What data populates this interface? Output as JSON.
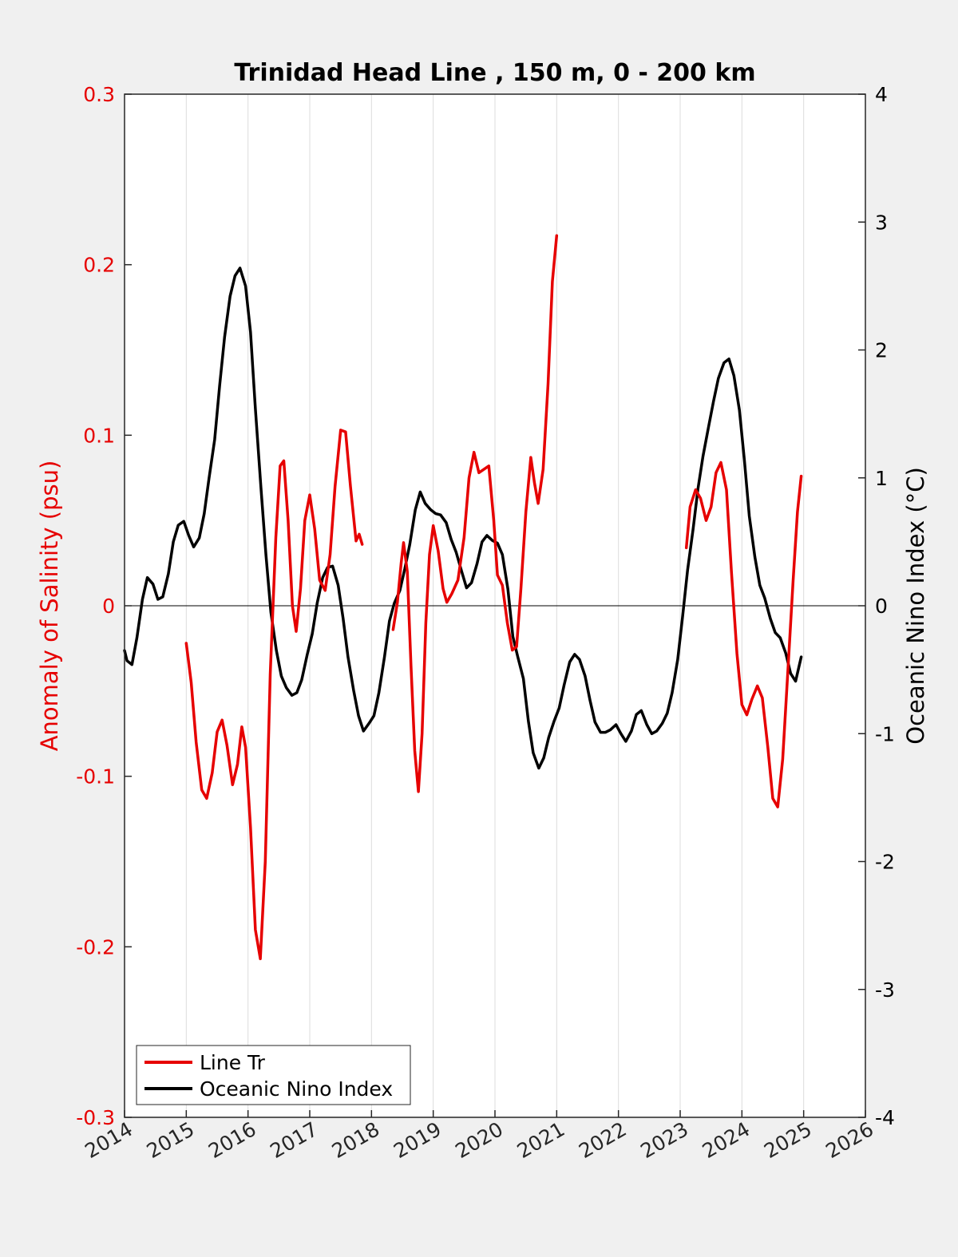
{
  "chart_data": {
    "type": "line",
    "title": "Trinidad Head Line , 150 m, 0 - 200 km",
    "x_label": "",
    "y_left_label": "Anomaly of Salinity (psu)",
    "y_right_label": "Oceanic Nino Index (°C)",
    "x_range": [
      2014,
      2026
    ],
    "y_left_range": [
      -0.3,
      0.3
    ],
    "y_right_range": [
      -4,
      4
    ],
    "x_ticks": [
      "2014",
      "2015",
      "2016",
      "2017",
      "2018",
      "2019",
      "2020",
      "2021",
      "2022",
      "2023",
      "2024",
      "2025",
      "2026"
    ],
    "y_left_ticks": [
      "-0.3",
      "-0.2",
      "-0.1",
      "0",
      "0.1",
      "0.2",
      "0.3"
    ],
    "y_right_ticks": [
      "-4",
      "-3",
      "-2",
      "-1",
      "0",
      "1",
      "2",
      "3",
      "4"
    ],
    "grid": "vertical lines at each year",
    "zero_line": true,
    "legend_position": "bottom-left",
    "colors": {
      "salinity": "#e60000",
      "oni": "#000000",
      "left_axis": "#e60000",
      "right_axis": "#000000",
      "grid": "#dcdcdc"
    },
    "series": [
      {
        "name": "Line Tr",
        "axis": "left",
        "segments": [
          [
            [
              2015.0,
              -0.022
            ],
            [
              2015.08,
              -0.045
            ],
            [
              2015.16,
              -0.08
            ],
            [
              2015.25,
              -0.108
            ],
            [
              2015.33,
              -0.113
            ],
            [
              2015.42,
              -0.098
            ],
            [
              2015.5,
              -0.074
            ],
            [
              2015.58,
              -0.067
            ],
            [
              2015.66,
              -0.082
            ],
            [
              2015.75,
              -0.105
            ],
            [
              2015.83,
              -0.093
            ],
            [
              2015.9,
              -0.071
            ],
            [
              2015.96,
              -0.083
            ],
            [
              2016.04,
              -0.13
            ],
            [
              2016.12,
              -0.19
            ],
            [
              2016.2,
              -0.207
            ],
            [
              2016.28,
              -0.15
            ],
            [
              2016.36,
              -0.04
            ],
            [
              2016.45,
              0.04
            ],
            [
              2016.52,
              0.082
            ],
            [
              2016.58,
              0.085
            ],
            [
              2016.65,
              0.05
            ],
            [
              2016.72,
              0.0
            ],
            [
              2016.78,
              -0.015
            ],
            [
              2016.85,
              0.01
            ],
            [
              2016.92,
              0.05
            ],
            [
              2017.0,
              0.065
            ],
            [
              2017.08,
              0.045
            ],
            [
              2017.16,
              0.015
            ],
            [
              2017.25,
              0.009
            ],
            [
              2017.33,
              0.03
            ],
            [
              2017.41,
              0.07
            ],
            [
              2017.5,
              0.103
            ],
            [
              2017.58,
              0.102
            ],
            [
              2017.66,
              0.07
            ],
            [
              2017.75,
              0.038
            ],
            [
              2017.8,
              0.042
            ],
            [
              2017.85,
              0.036
            ]
          ],
          [
            [
              2018.35,
              -0.014
            ],
            [
              2018.42,
              0.002
            ],
            [
              2018.48,
              0.025
            ],
            [
              2018.52,
              0.037
            ],
            [
              2018.58,
              0.02
            ],
            [
              2018.64,
              -0.035
            ],
            [
              2018.7,
              -0.085
            ],
            [
              2018.76,
              -0.109
            ],
            [
              2018.82,
              -0.075
            ],
            [
              2018.88,
              -0.01
            ],
            [
              2018.94,
              0.03
            ],
            [
              2019.0,
              0.047
            ],
            [
              2019.08,
              0.032
            ],
            [
              2019.16,
              0.01
            ],
            [
              2019.22,
              0.002
            ],
            [
              2019.3,
              0.007
            ],
            [
              2019.4,
              0.015
            ],
            [
              2019.5,
              0.04
            ],
            [
              2019.58,
              0.075
            ],
            [
              2019.66,
              0.09
            ],
            [
              2019.74,
              0.078
            ],
            [
              2019.82,
              0.08
            ],
            [
              2019.9,
              0.082
            ],
            [
              2019.98,
              0.05
            ],
            [
              2020.04,
              0.018
            ],
            [
              2020.12,
              0.012
            ],
            [
              2020.2,
              -0.01
            ],
            [
              2020.28,
              -0.026
            ],
            [
              2020.35,
              -0.024
            ],
            [
              2020.42,
              0.01
            ],
            [
              2020.5,
              0.055
            ],
            [
              2020.58,
              0.087
            ],
            [
              2020.64,
              0.072
            ],
            [
              2020.7,
              0.06
            ],
            [
              2020.78,
              0.08
            ],
            [
              2020.86,
              0.13
            ],
            [
              2020.93,
              0.19
            ],
            [
              2021.0,
              0.217
            ]
          ],
          [
            [
              2023.1,
              0.034
            ],
            [
              2023.16,
              0.058
            ],
            [
              2023.25,
              0.068
            ],
            [
              2023.33,
              0.063
            ],
            [
              2023.42,
              0.05
            ],
            [
              2023.5,
              0.058
            ],
            [
              2023.58,
              0.078
            ],
            [
              2023.66,
              0.084
            ],
            [
              2023.75,
              0.068
            ],
            [
              2023.83,
              0.02
            ],
            [
              2023.92,
              -0.028
            ],
            [
              2024.0,
              -0.058
            ],
            [
              2024.08,
              -0.064
            ],
            [
              2024.16,
              -0.055
            ],
            [
              2024.25,
              -0.047
            ],
            [
              2024.33,
              -0.054
            ],
            [
              2024.42,
              -0.083
            ],
            [
              2024.5,
              -0.113
            ],
            [
              2024.58,
              -0.118
            ],
            [
              2024.66,
              -0.09
            ],
            [
              2024.75,
              -0.035
            ],
            [
              2024.83,
              0.015
            ],
            [
              2024.9,
              0.055
            ],
            [
              2024.96,
              0.076
            ]
          ]
        ]
      },
      {
        "name": "Oceanic Nino Index",
        "axis": "right",
        "segments": [
          [
            [
              2014.0,
              -0.35
            ],
            [
              2014.04,
              -0.43
            ],
            [
              2014.12,
              -0.46
            ],
            [
              2014.2,
              -0.25
            ],
            [
              2014.29,
              0.05
            ],
            [
              2014.37,
              0.22
            ],
            [
              2014.46,
              0.17
            ],
            [
              2014.54,
              0.05
            ],
            [
              2014.62,
              0.07
            ],
            [
              2014.71,
              0.25
            ],
            [
              2014.79,
              0.5
            ],
            [
              2014.87,
              0.63
            ],
            [
              2014.96,
              0.66
            ],
            [
              2015.04,
              0.55
            ],
            [
              2015.12,
              0.46
            ],
            [
              2015.21,
              0.53
            ],
            [
              2015.29,
              0.72
            ],
            [
              2015.37,
              1.0
            ],
            [
              2015.46,
              1.3
            ],
            [
              2015.54,
              1.72
            ],
            [
              2015.62,
              2.1
            ],
            [
              2015.71,
              2.42
            ],
            [
              2015.79,
              2.58
            ],
            [
              2015.87,
              2.64
            ],
            [
              2015.96,
              2.5
            ],
            [
              2016.04,
              2.14
            ],
            [
              2016.12,
              1.54
            ],
            [
              2016.21,
              0.92
            ],
            [
              2016.29,
              0.4
            ],
            [
              2016.37,
              -0.05
            ],
            [
              2016.46,
              -0.35
            ],
            [
              2016.54,
              -0.55
            ],
            [
              2016.62,
              -0.64
            ],
            [
              2016.71,
              -0.7
            ],
            [
              2016.79,
              -0.68
            ],
            [
              2016.87,
              -0.58
            ],
            [
              2016.96,
              -0.38
            ],
            [
              2017.04,
              -0.22
            ],
            [
              2017.12,
              0.02
            ],
            [
              2017.21,
              0.22
            ],
            [
              2017.29,
              0.3
            ],
            [
              2017.37,
              0.31
            ],
            [
              2017.46,
              0.16
            ],
            [
              2017.54,
              -0.1
            ],
            [
              2017.62,
              -0.4
            ],
            [
              2017.71,
              -0.66
            ],
            [
              2017.79,
              -0.86
            ],
            [
              2017.87,
              -0.98
            ],
            [
              2017.96,
              -0.92
            ],
            [
              2018.04,
              -0.86
            ],
            [
              2018.12,
              -0.68
            ],
            [
              2018.21,
              -0.4
            ],
            [
              2018.29,
              -0.12
            ],
            [
              2018.37,
              0.02
            ],
            [
              2018.46,
              0.12
            ],
            [
              2018.54,
              0.29
            ],
            [
              2018.62,
              0.48
            ],
            [
              2018.71,
              0.75
            ],
            [
              2018.79,
              0.89
            ],
            [
              2018.87,
              0.8
            ],
            [
              2018.96,
              0.75
            ],
            [
              2019.04,
              0.72
            ],
            [
              2019.12,
              0.71
            ],
            [
              2019.21,
              0.65
            ],
            [
              2019.29,
              0.52
            ],
            [
              2019.37,
              0.42
            ],
            [
              2019.46,
              0.27
            ],
            [
              2019.54,
              0.14
            ],
            [
              2019.62,
              0.18
            ],
            [
              2019.71,
              0.33
            ],
            [
              2019.79,
              0.5
            ],
            [
              2019.87,
              0.55
            ],
            [
              2019.96,
              0.51
            ],
            [
              2020.04,
              0.49
            ],
            [
              2020.12,
              0.4
            ],
            [
              2020.21,
              0.13
            ],
            [
              2020.29,
              -0.24
            ],
            [
              2020.37,
              -0.4
            ],
            [
              2020.46,
              -0.57
            ],
            [
              2020.54,
              -0.9
            ],
            [
              2020.62,
              -1.15
            ],
            [
              2020.71,
              -1.27
            ],
            [
              2020.79,
              -1.19
            ],
            [
              2020.87,
              -1.03
            ],
            [
              2020.96,
              -0.9
            ],
            [
              2021.04,
              -0.8
            ],
            [
              2021.12,
              -0.62
            ],
            [
              2021.21,
              -0.44
            ],
            [
              2021.29,
              -0.38
            ],
            [
              2021.37,
              -0.42
            ],
            [
              2021.46,
              -0.55
            ],
            [
              2021.54,
              -0.74
            ],
            [
              2021.62,
              -0.91
            ],
            [
              2021.71,
              -0.99
            ],
            [
              2021.79,
              -0.99
            ],
            [
              2021.87,
              -0.97
            ],
            [
              2021.96,
              -0.93
            ],
            [
              2022.04,
              -1.0
            ],
            [
              2022.12,
              -1.06
            ],
            [
              2022.21,
              -0.98
            ],
            [
              2022.29,
              -0.85
            ],
            [
              2022.37,
              -0.82
            ],
            [
              2022.46,
              -0.93
            ],
            [
              2022.54,
              -1.0
            ],
            [
              2022.62,
              -0.98
            ],
            [
              2022.71,
              -0.92
            ],
            [
              2022.79,
              -0.84
            ],
            [
              2022.87,
              -0.68
            ],
            [
              2022.96,
              -0.42
            ],
            [
              2023.04,
              -0.08
            ],
            [
              2023.12,
              0.28
            ],
            [
              2023.21,
              0.6
            ],
            [
              2023.29,
              0.92
            ],
            [
              2023.37,
              1.17
            ],
            [
              2023.46,
              1.4
            ],
            [
              2023.54,
              1.6
            ],
            [
              2023.62,
              1.78
            ],
            [
              2023.71,
              1.9
            ],
            [
              2023.79,
              1.93
            ],
            [
              2023.87,
              1.8
            ],
            [
              2023.96,
              1.53
            ],
            [
              2024.04,
              1.14
            ],
            [
              2024.12,
              0.7
            ],
            [
              2024.21,
              0.38
            ],
            [
              2024.29,
              0.16
            ],
            [
              2024.37,
              0.06
            ],
            [
              2024.46,
              -0.1
            ],
            [
              2024.54,
              -0.21
            ],
            [
              2024.62,
              -0.25
            ],
            [
              2024.71,
              -0.37
            ],
            [
              2024.79,
              -0.53
            ],
            [
              2024.87,
              -0.59
            ],
            [
              2024.96,
              -0.4
            ]
          ]
        ]
      }
    ],
    "legend": [
      "Line Tr",
      "Oceanic Nino Index"
    ]
  }
}
